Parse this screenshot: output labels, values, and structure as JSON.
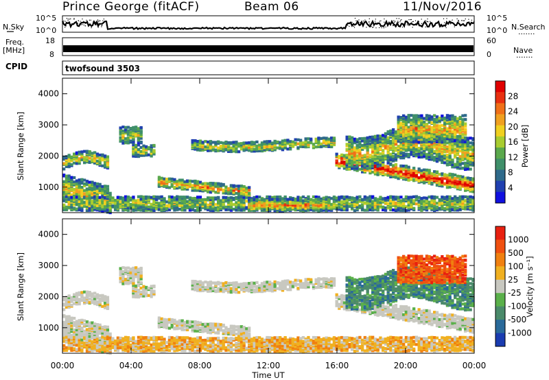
{
  "header": {
    "station_title": "Prince George (fitACF)",
    "beam": "Beam 06",
    "date": "11/Nov/2016"
  },
  "left_labels": {
    "nsky": "N.Sky",
    "freq_line1": "Freq.",
    "freq_line2": "[MHz]",
    "cpid": "CPID"
  },
  "right_labels": {
    "nsearch": "N.Search",
    "nave": "Nave",
    "dots": "......."
  },
  "cpid_value": "twofsound 3503",
  "colors": {
    "nsky_trace": "#000000",
    "freq_band": "#000000",
    "blank": "#ffffff"
  },
  "chart_data": [
    {
      "type": "line",
      "name": "noise-panel",
      "left_axis_ticks": [
        "10^5",
        "10^0"
      ],
      "right_axis_ticks": [
        "10^5",
        "10^0"
      ],
      "log_scale": true,
      "ylim": [
        1,
        100000
      ]
    },
    {
      "type": "line",
      "name": "frequency-nave-panel",
      "left_axis_ticks": [
        "18",
        "8"
      ],
      "right_axis_ticks": [
        "60",
        "0"
      ],
      "ylim_left": [
        8,
        18
      ],
      "ylim_right": [
        0,
        60
      ]
    },
    {
      "type": "heatmap",
      "name": "power",
      "ylabel": "Slant Range [km]",
      "yticks": [
        1000,
        2000,
        3000,
        4000
      ],
      "ylim": [
        180,
        4500
      ],
      "xlabel": "Time UT",
      "xticks": [
        "00:00",
        "04:00",
        "08:00",
        "12:00",
        "16:00",
        "20:00",
        "00:00"
      ],
      "colorbar": {
        "label": "Power [dB]",
        "ticks": [
          "28",
          "24",
          "20",
          "16",
          "12",
          "8",
          "4"
        ],
        "colors": [
          "#1010e0",
          "#2040b0",
          "#2f6a8a",
          "#3f8f6a",
          "#5aa84c",
          "#a8cc30",
          "#f0d020",
          "#f0a020",
          "#f07018",
          "#e83010",
          "#e00000"
        ]
      }
    },
    {
      "type": "heatmap",
      "name": "velocity",
      "ylabel": "Slant Range [km]",
      "yticks": [
        1000,
        2000,
        3000,
        4000
      ],
      "ylim": [
        180,
        4500
      ],
      "xlabel": "Time UT",
      "xticks": [
        "00:00",
        "04:00",
        "08:00",
        "12:00",
        "16:00",
        "20:00",
        "00:00"
      ],
      "colorbar": {
        "label": "Velocity [m s⁻¹]",
        "ticks": [
          "1000",
          "500",
          "100",
          "25",
          "-25",
          "-100",
          "-500",
          "-1000"
        ],
        "colors": [
          "#1a3cb0",
          "#2a6a9a",
          "#4a8a6a",
          "#5ab04a",
          "#c8c8c0",
          "#f0b020",
          "#f08010",
          "#f05010",
          "#e82010"
        ]
      }
    }
  ],
  "x_axis": {
    "label": "Time UT",
    "ticks": [
      "00:00",
      "04:00",
      "08:00",
      "12:00",
      "16:00",
      "20:00",
      "00:00"
    ]
  }
}
